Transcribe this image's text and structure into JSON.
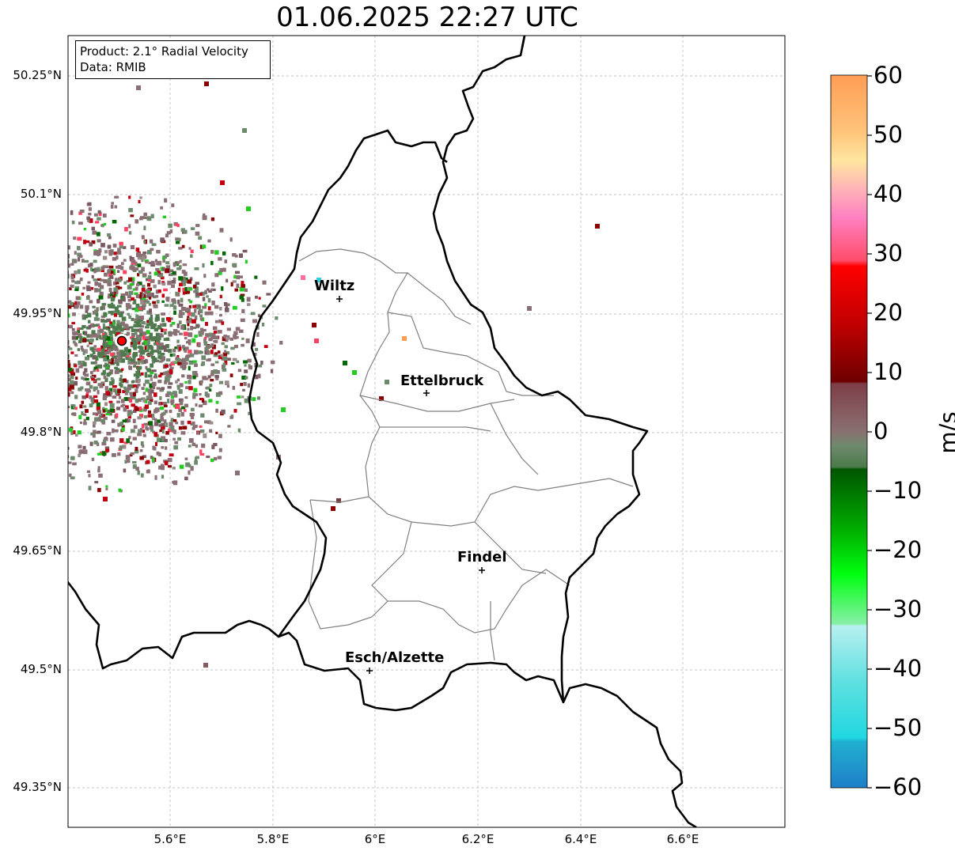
{
  "title": "01.06.2025 22:27 UTC",
  "info": {
    "product": "Product: 2.1° Radial Velocity",
    "data_source": "Data: RMIB"
  },
  "axes": {
    "lat_ticks": [
      "50.25°N",
      "50.1°N",
      "49.95°N",
      "49.8°N",
      "49.65°N",
      "49.5°N",
      "49.35°N"
    ],
    "lon_ticks": [
      "5.6°E",
      "5.8°E",
      "6°E",
      "6.2°E",
      "6.4°E",
      "6.6°E"
    ]
  },
  "cities": [
    {
      "name": "Wiltz"
    },
    {
      "name": "Ettelbruck"
    },
    {
      "name": "Findel"
    },
    {
      "name": "Esch/Alzette"
    }
  ],
  "colorbar": {
    "unit": "m/s",
    "ticks": [
      "60",
      "50",
      "40",
      "30",
      "20",
      "10",
      "0",
      "−10",
      "−20",
      "−30",
      "−40",
      "−50",
      "−60"
    ],
    "range": [
      -60,
      60
    ]
  },
  "colors": {
    "border": "#000000",
    "cantons": "#808080",
    "grid": "#b0b0b0",
    "radar_site": "#ff0000"
  }
}
